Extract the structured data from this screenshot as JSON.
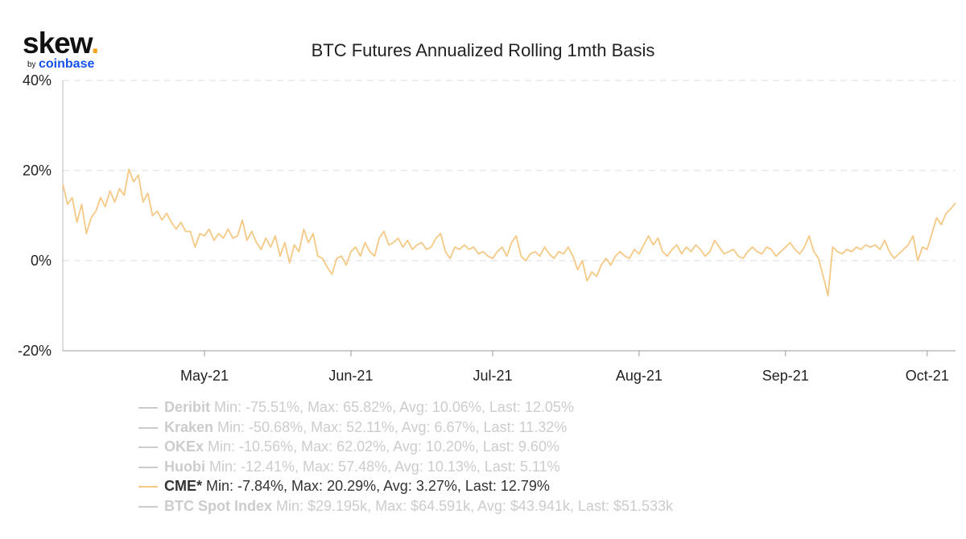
{
  "logo": {
    "word": "skew",
    "dot": ".",
    "by": "by",
    "brand": "coinbase"
  },
  "chart_data": {
    "type": "line",
    "title": "BTC Futures Annualized Rolling 1mth Basis",
    "xlabel": "",
    "ylabel": "",
    "x_range": [
      "2021-04-01",
      "2021-10-07"
    ],
    "ylim": [
      -20,
      40
    ],
    "y_ticks": [
      40,
      20,
      0,
      -20
    ],
    "y_tick_labels": [
      "40%",
      "20%",
      "0%",
      "-20%"
    ],
    "x_ticks": [
      "2021-05-01",
      "2021-06-01",
      "2021-07-01",
      "2021-08-01",
      "2021-09-01",
      "2021-10-01"
    ],
    "x_tick_labels": [
      "May-21",
      "Jun-21",
      "Jul-21",
      "Aug-21",
      "Sep-21",
      "Oct-21"
    ],
    "grid": "horizontal dashed",
    "legend_position": "bottom",
    "series": [
      {
        "name": "Deribit",
        "stats": "Min: -75.51%, Max: 65.82%, Avg: 10.06%, Last: 12.05%",
        "visible": false
      },
      {
        "name": "Kraken",
        "stats": "Min: -50.68%, Max: 52.11%, Avg: 6.67%, Last: 11.32%",
        "visible": false
      },
      {
        "name": "OKEx",
        "stats": "Min: -10.56%, Max: 62.02%, Avg: 10.20%, Last: 9.60%",
        "visible": false
      },
      {
        "name": "Huobi",
        "stats": "Min: -12.41%, Max: 57.48%, Avg: 10.13%, Last: 5.11%",
        "visible": false
      },
      {
        "name": "CME*",
        "stats": "Min: -7.84%, Max: 20.29%, Avg: 3.27%, Last: 12.79%",
        "visible": true,
        "color": "#f5c985",
        "points": [
          [
            "2021-04-01",
            17
          ],
          [
            "2021-04-02",
            12.5
          ],
          [
            "2021-04-03",
            14
          ],
          [
            "2021-04-04",
            8.5
          ],
          [
            "2021-04-05",
            12.5
          ],
          [
            "2021-04-06",
            6
          ],
          [
            "2021-04-07",
            9.5
          ],
          [
            "2021-04-08",
            11
          ],
          [
            "2021-04-09",
            14
          ],
          [
            "2021-04-10",
            12
          ],
          [
            "2021-04-11",
            15.5
          ],
          [
            "2021-04-12",
            13
          ],
          [
            "2021-04-13",
            16
          ],
          [
            "2021-04-14",
            14.5
          ],
          [
            "2021-04-15",
            20.3
          ],
          [
            "2021-04-16",
            17.5
          ],
          [
            "2021-04-17",
            19
          ],
          [
            "2021-04-18",
            13
          ],
          [
            "2021-04-19",
            15
          ],
          [
            "2021-04-20",
            10
          ],
          [
            "2021-04-21",
            11
          ],
          [
            "2021-04-22",
            9
          ],
          [
            "2021-04-23",
            10.5
          ],
          [
            "2021-04-24",
            8.5
          ],
          [
            "2021-04-25",
            7
          ],
          [
            "2021-04-26",
            8.5
          ],
          [
            "2021-04-27",
            6.5
          ],
          [
            "2021-04-28",
            6.5
          ],
          [
            "2021-04-29",
            3
          ],
          [
            "2021-04-30",
            6
          ],
          [
            "2021-05-01",
            5.5
          ],
          [
            "2021-05-02",
            7
          ],
          [
            "2021-05-03",
            4.5
          ],
          [
            "2021-05-04",
            6
          ],
          [
            "2021-05-05",
            5
          ],
          [
            "2021-05-06",
            7
          ],
          [
            "2021-05-07",
            5
          ],
          [
            "2021-05-08",
            5.5
          ],
          [
            "2021-05-09",
            9
          ],
          [
            "2021-05-10",
            4.5
          ],
          [
            "2021-05-11",
            6.5
          ],
          [
            "2021-05-12",
            4
          ],
          [
            "2021-05-13",
            2.5
          ],
          [
            "2021-05-14",
            5
          ],
          [
            "2021-05-15",
            3
          ],
          [
            "2021-05-16",
            5.5
          ],
          [
            "2021-05-17",
            1
          ],
          [
            "2021-05-18",
            4
          ],
          [
            "2021-05-19",
            -0.5
          ],
          [
            "2021-05-20",
            3.5
          ],
          [
            "2021-05-21",
            2
          ],
          [
            "2021-05-22",
            7
          ],
          [
            "2021-05-23",
            4
          ],
          [
            "2021-05-24",
            6
          ],
          [
            "2021-05-25",
            1
          ],
          [
            "2021-05-26",
            0.5
          ],
          [
            "2021-05-27",
            -1.5
          ],
          [
            "2021-05-28",
            -3
          ],
          [
            "2021-05-29",
            0.5
          ],
          [
            "2021-05-30",
            1
          ],
          [
            "2021-05-31",
            -1
          ],
          [
            "2021-06-01",
            2
          ],
          [
            "2021-06-02",
            3
          ],
          [
            "2021-06-03",
            1
          ],
          [
            "2021-06-04",
            4
          ],
          [
            "2021-06-05",
            2
          ],
          [
            "2021-06-06",
            1
          ],
          [
            "2021-06-07",
            5
          ],
          [
            "2021-06-08",
            6.5
          ],
          [
            "2021-06-09",
            3.5
          ],
          [
            "2021-06-10",
            4
          ],
          [
            "2021-06-11",
            5
          ],
          [
            "2021-06-12",
            3
          ],
          [
            "2021-06-13",
            4.5
          ],
          [
            "2021-06-14",
            2.5
          ],
          [
            "2021-06-15",
            3.5
          ],
          [
            "2021-06-16",
            4
          ],
          [
            "2021-06-17",
            2.5
          ],
          [
            "2021-06-18",
            3
          ],
          [
            "2021-06-19",
            5
          ],
          [
            "2021-06-20",
            6
          ],
          [
            "2021-06-21",
            2
          ],
          [
            "2021-06-22",
            0.5
          ],
          [
            "2021-06-23",
            3
          ],
          [
            "2021-06-24",
            2.5
          ],
          [
            "2021-06-25",
            3.5
          ],
          [
            "2021-06-26",
            2.5
          ],
          [
            "2021-06-27",
            3
          ],
          [
            "2021-06-28",
            1.5
          ],
          [
            "2021-06-29",
            2
          ],
          [
            "2021-06-30",
            1
          ],
          [
            "2021-07-01",
            0.5
          ],
          [
            "2021-07-02",
            2
          ],
          [
            "2021-07-03",
            3
          ],
          [
            "2021-07-04",
            1
          ],
          [
            "2021-07-05",
            4
          ],
          [
            "2021-07-06",
            5.5
          ],
          [
            "2021-07-07",
            1
          ],
          [
            "2021-07-08",
            0
          ],
          [
            "2021-07-09",
            1.5
          ],
          [
            "2021-07-10",
            2
          ],
          [
            "2021-07-11",
            1
          ],
          [
            "2021-07-12",
            3
          ],
          [
            "2021-07-13",
            1.5
          ],
          [
            "2021-07-14",
            0.5
          ],
          [
            "2021-07-15",
            2
          ],
          [
            "2021-07-16",
            1.5
          ],
          [
            "2021-07-17",
            3
          ],
          [
            "2021-07-18",
            1
          ],
          [
            "2021-07-19",
            -2
          ],
          [
            "2021-07-20",
            0
          ],
          [
            "2021-07-21",
            -4.5
          ],
          [
            "2021-07-22",
            -2.5
          ],
          [
            "2021-07-23",
            -3.5
          ],
          [
            "2021-07-24",
            -1
          ],
          [
            "2021-07-25",
            0.5
          ],
          [
            "2021-07-26",
            -1
          ],
          [
            "2021-07-27",
            1
          ],
          [
            "2021-07-28",
            2
          ],
          [
            "2021-07-29",
            1
          ],
          [
            "2021-07-30",
            0.5
          ],
          [
            "2021-07-31",
            2.5
          ],
          [
            "2021-08-01",
            1.5
          ],
          [
            "2021-08-02",
            3.5
          ],
          [
            "2021-08-03",
            5.5
          ],
          [
            "2021-08-04",
            3.5
          ],
          [
            "2021-08-05",
            5
          ],
          [
            "2021-08-06",
            2
          ],
          [
            "2021-08-07",
            1
          ],
          [
            "2021-08-08",
            2.5
          ],
          [
            "2021-08-09",
            3.5
          ],
          [
            "2021-08-10",
            1.5
          ],
          [
            "2021-08-11",
            3
          ],
          [
            "2021-08-12",
            2
          ],
          [
            "2021-08-13",
            3.5
          ],
          [
            "2021-08-14",
            2.5
          ],
          [
            "2021-08-15",
            1
          ],
          [
            "2021-08-16",
            2
          ],
          [
            "2021-08-17",
            4.5
          ],
          [
            "2021-08-18",
            3
          ],
          [
            "2021-08-19",
            1.5
          ],
          [
            "2021-08-20",
            2
          ],
          [
            "2021-08-21",
            2.5
          ],
          [
            "2021-08-22",
            1
          ],
          [
            "2021-08-23",
            0.5
          ],
          [
            "2021-08-24",
            2
          ],
          [
            "2021-08-25",
            3
          ],
          [
            "2021-08-26",
            2
          ],
          [
            "2021-08-27",
            1.5
          ],
          [
            "2021-08-28",
            3
          ],
          [
            "2021-08-29",
            2.5
          ],
          [
            "2021-08-30",
            1
          ],
          [
            "2021-08-31",
            2
          ],
          [
            "2021-09-01",
            3
          ],
          [
            "2021-09-02",
            4
          ],
          [
            "2021-09-03",
            2.5
          ],
          [
            "2021-09-04",
            1.5
          ],
          [
            "2021-09-05",
            3
          ],
          [
            "2021-09-06",
            5.5
          ],
          [
            "2021-09-07",
            2
          ],
          [
            "2021-09-08",
            0.5
          ],
          [
            "2021-09-09",
            -3.5
          ],
          [
            "2021-09-10",
            -7.8
          ],
          [
            "2021-09-11",
            3
          ],
          [
            "2021-09-12",
            2
          ],
          [
            "2021-09-13",
            1.5
          ],
          [
            "2021-09-14",
            2.5
          ],
          [
            "2021-09-15",
            2
          ],
          [
            "2021-09-16",
            3
          ],
          [
            "2021-09-17",
            2.5
          ],
          [
            "2021-09-18",
            3.5
          ],
          [
            "2021-09-19",
            3
          ],
          [
            "2021-09-20",
            3.5
          ],
          [
            "2021-09-21",
            2.5
          ],
          [
            "2021-09-22",
            4.5
          ],
          [
            "2021-09-23",
            2
          ],
          [
            "2021-09-24",
            0.5
          ],
          [
            "2021-09-25",
            1.5
          ],
          [
            "2021-09-26",
            2.5
          ],
          [
            "2021-09-27",
            3.5
          ],
          [
            "2021-09-28",
            5.5
          ],
          [
            "2021-09-29",
            0
          ],
          [
            "2021-09-30",
            3
          ],
          [
            "2021-10-01",
            2.5
          ],
          [
            "2021-10-02",
            6
          ],
          [
            "2021-10-03",
            9.5
          ],
          [
            "2021-10-04",
            8
          ],
          [
            "2021-10-05",
            10.5
          ],
          [
            "2021-10-06",
            11.5
          ],
          [
            "2021-10-07",
            12.79
          ]
        ]
      },
      {
        "name": "BTC Spot Index",
        "stats": "Min: $29.195k, Max: $64.591k, Avg: $43.941k, Last: $51.533k",
        "visible": false
      }
    ]
  }
}
